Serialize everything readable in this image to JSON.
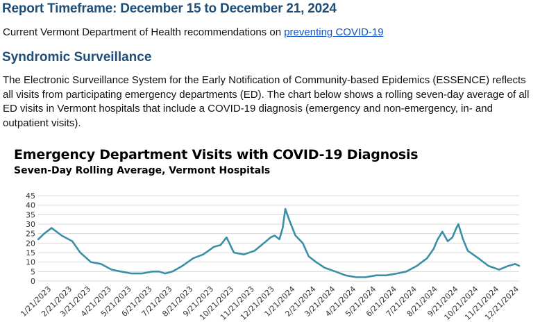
{
  "header": {
    "report_timeframe": "Report Timeframe: December 15 to December 21, 2024",
    "recommend_text": "Current Vermont Department of Health recommendations on ",
    "recommend_link": "preventing COVID-19 "
  },
  "section": {
    "title": "Syndromic Surveillance",
    "paragraph": "The Electronic Surveillance System for the Early Notification of Community-based Epidemics (ESSENCE) reflects all visits from participating emergency departments (ED). The chart below shows a rolling seven-day average of all ED visits in Vermont hospitals that include a COVID-19 diagnosis (emergency and non-emergency, in- and outpatient visits)."
  },
  "colors": {
    "line": "#3a8fa6",
    "grid": "#d9d9d9",
    "heading": "#1f4e79",
    "link": "#1155cc"
  },
  "chart_data": {
    "type": "line",
    "title": "Emergency Department Visits with COVID-19 Diagnosis",
    "subtitle": "Seven-Day Rolling Average, Vermont Hospitals",
    "xlabel": "",
    "ylabel": "",
    "ylim": [
      0,
      45
    ],
    "yticks": [
      "0",
      "5",
      "10",
      "15",
      "20",
      "25",
      "30",
      "35",
      "40",
      "45"
    ],
    "grid": "horizontal",
    "xticks": [
      "1/21/2023",
      "2/21/2023",
      "3/21/2023",
      "4/21/2023",
      "5/21/2023",
      "6/21/2023",
      "7/21/2023",
      "8/21/2023",
      "9/21/2023",
      "10/21/2023",
      "11/21/2023",
      "12/21/2023",
      "1/21/2024",
      "2/21/2024",
      "3/21/2024",
      "4/21/2024",
      "5/21/2024",
      "6/21/2024",
      "7/21/2024",
      "8/21/2024",
      "9/21/2024",
      "10/21/2024",
      "11/21/2024",
      "12/21/2024"
    ],
    "series": [
      {
        "x": [
          "1/1/2023",
          "1/10/2023",
          "1/21/2023",
          "2/5/2023",
          "2/21/2023",
          "3/5/2023",
          "3/21/2023",
          "4/5/2023",
          "4/21/2023",
          "5/5/2023",
          "5/21/2023",
          "6/5/2023",
          "6/21/2023",
          "7/1/2023",
          "7/10/2023",
          "7/21/2023",
          "8/5/2023",
          "8/21/2023",
          "9/5/2023",
          "9/21/2023",
          "10/1/2023",
          "10/10/2023",
          "10/21/2023",
          "11/5/2023",
          "11/21/2023",
          "12/5/2023",
          "12/15/2023",
          "12/21/2023",
          "12/28/2023",
          "1/2/2024",
          "1/6/2024",
          "1/12/2024",
          "1/21/2024",
          "2/1/2024",
          "2/10/2024",
          "2/21/2024",
          "3/5/2024",
          "3/21/2024",
          "4/5/2024",
          "4/21/2024",
          "5/5/2024",
          "5/21/2024",
          "6/5/2024",
          "6/21/2024",
          "7/5/2024",
          "7/21/2024",
          "8/5/2024",
          "8/15/2024",
          "8/21/2024",
          "8/28/2024",
          "9/5/2024",
          "9/12/2024",
          "9/18/2024",
          "9/21/2024",
          "9/28/2024",
          "10/5/2024",
          "10/21/2024",
          "11/5/2024",
          "11/21/2024",
          "12/5/2024",
          "12/15/2024",
          "12/21/2024"
        ],
        "values": [
          22,
          25,
          28,
          24,
          21,
          15,
          10,
          9,
          6,
          5,
          4,
          4,
          5,
          5,
          4,
          5,
          8,
          12,
          14,
          18,
          19,
          23,
          15,
          14,
          16,
          20,
          23,
          24,
          22,
          28,
          38,
          32,
          24,
          20,
          13,
          10,
          7,
          5,
          3,
          2,
          2,
          3,
          3,
          4,
          5,
          8,
          12,
          17,
          22,
          26,
          21,
          23,
          28,
          30,
          22,
          16,
          12,
          8,
          6,
          8,
          9,
          8
        ]
      }
    ]
  }
}
